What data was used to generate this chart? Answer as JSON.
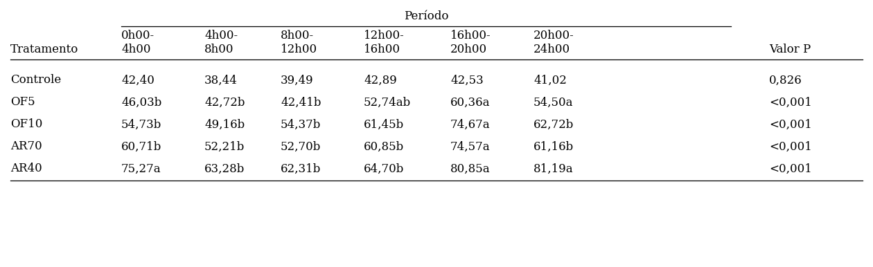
{
  "periodo_label": "Período",
  "col_headers_line1": [
    "0h00-",
    "4h00-",
    "8h00-",
    "12h00-",
    "16h00-",
    "20h00-"
  ],
  "col_headers_line2": [
    "4h00",
    "8h00",
    "12h00",
    "16h00",
    "20h00",
    "24h00"
  ],
  "tratamento_header": "Tratamento",
  "last_col_header": "Valor P",
  "rows": [
    {
      "name": "Controle",
      "values": [
        "42,40",
        "38,44",
        "39,49",
        "42,89",
        "42,53",
        "41,02"
      ],
      "valor_p": "0,826"
    },
    {
      "name": "OF5",
      "values": [
        "46,03b",
        "42,72b",
        "42,41b",
        "52,74ab",
        "60,36a",
        "54,50a"
      ],
      "valor_p": "<0,001"
    },
    {
      "name": "OF10",
      "values": [
        "54,73b",
        "49,16b",
        "54,37b",
        "61,45b",
        "74,67a",
        "62,72b"
      ],
      "valor_p": "<0,001"
    },
    {
      "name": "AR70",
      "values": [
        "60,71b",
        "52,21b",
        "52,70b",
        "60,85b",
        "74,57a",
        "61,16b"
      ],
      "valor_p": "<0,001"
    },
    {
      "name": "AR40",
      "values": [
        "75,27a",
        "63,28b",
        "62,31b",
        "64,70b",
        "80,85a",
        "81,19a"
      ],
      "valor_p": "<0,001"
    }
  ],
  "text_color": "#000000",
  "font_size": 12,
  "font_family": "serif"
}
